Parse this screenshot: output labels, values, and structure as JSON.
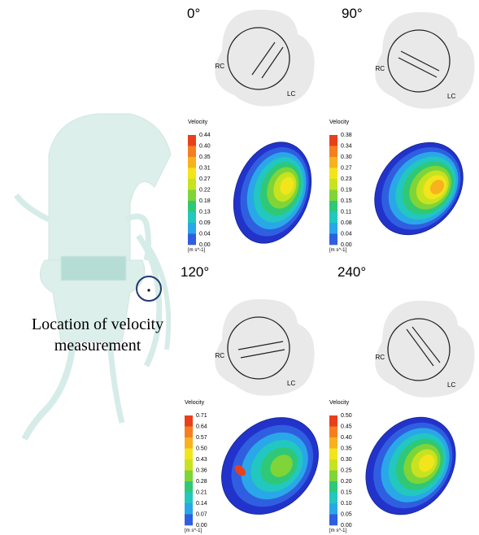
{
  "caption": {
    "line1": "Location of velocity",
    "line2": "measurement"
  },
  "panels": [
    {
      "angle": "0°",
      "rc": "RC",
      "lc": "LC",
      "colorbar": {
        "title": "Velocity",
        "unit": "[m s^-1]",
        "ticks": [
          "0.44",
          "0.40",
          "0.35",
          "0.31",
          "0.27",
          "0.22",
          "0.18",
          "0.13",
          "0.09",
          "0.04",
          "0.00"
        ]
      }
    },
    {
      "angle": "90°",
      "rc": "RC",
      "lc": "LC",
      "colorbar": {
        "title": "Velocity",
        "unit": "[m s^-1]",
        "ticks": [
          "0.38",
          "0.34",
          "0.30",
          "0.27",
          "0.23",
          "0.19",
          "0.15",
          "0.11",
          "0.08",
          "0.04",
          "0.00"
        ]
      }
    },
    {
      "angle": "120°",
      "rc": "RC",
      "lc": "LC",
      "colorbar": {
        "title": "Velocity",
        "unit": "[m s^-1]",
        "ticks": [
          "0.71",
          "0.64",
          "0.57",
          "0.50",
          "0.43",
          "0.36",
          "0.28",
          "0.21",
          "0.14",
          "0.07",
          "0.00"
        ]
      }
    },
    {
      "angle": "240°",
      "rc": "RC",
      "lc": "LC",
      "colorbar": {
        "title": "Velocity",
        "unit": "[m s^-1]",
        "ticks": [
          "0.50",
          "0.45",
          "0.40",
          "0.35",
          "0.30",
          "0.25",
          "0.20",
          "0.15",
          "0.10",
          "0.05",
          "0.00"
        ]
      }
    }
  ]
}
